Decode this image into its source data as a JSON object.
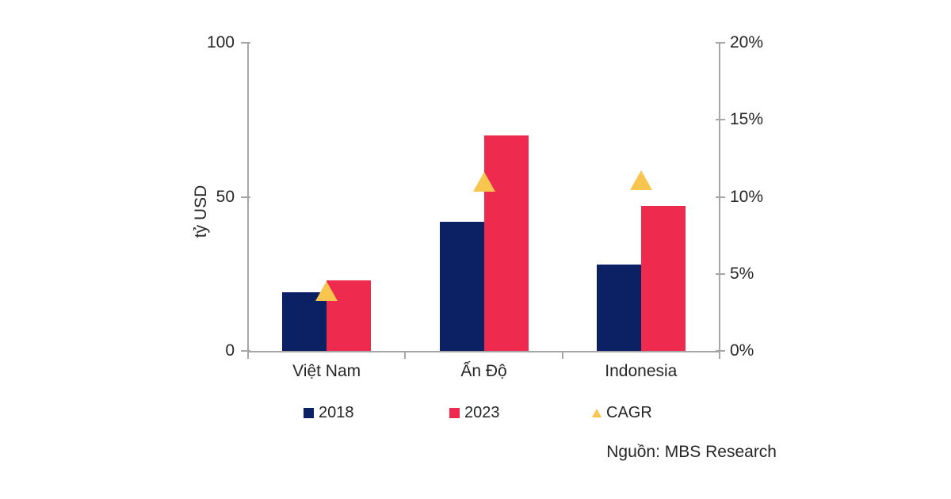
{
  "source_note": "Nguồn: MBS Research",
  "colors": {
    "bar_2018": "#0B2164",
    "bar_2023": "#EE2B4E",
    "cagr_marker": "#F8C54F",
    "axis_line": "#A6A6A6",
    "text": "#262626"
  },
  "chart_data": {
    "type": "bar",
    "title": "",
    "categories": [
      "Việt Nam",
      "Ấn Độ",
      "Indonesia"
    ],
    "series": [
      {
        "name": "2018",
        "type": "bar",
        "axis": "left",
        "color_key": "bar_2018",
        "values": [
          19,
          42,
          28
        ]
      },
      {
        "name": "2023",
        "type": "bar",
        "axis": "left",
        "color_key": "bar_2023",
        "values": [
          23,
          70,
          47
        ]
      },
      {
        "name": "CAGR",
        "type": "scatter",
        "marker": "triangle",
        "axis": "right",
        "color_key": "cagr_marker",
        "values": [
          3.9,
          11.0,
          11.1
        ],
        "unit": "%"
      }
    ],
    "left_axis": {
      "title": "tỷ USD",
      "min": 0,
      "max": 100,
      "ticks": [
        0,
        50,
        100
      ],
      "tick_labels": [
        "0",
        "50",
        "100"
      ]
    },
    "right_axis": {
      "min": 0,
      "max": 20,
      "ticks": [
        0,
        5,
        10,
        15,
        20
      ],
      "tick_labels": [
        "0%",
        "5%",
        "10%",
        "15%",
        "20%"
      ]
    },
    "legend": [
      {
        "label": "2018",
        "swatch": "square",
        "color_key": "bar_2018"
      },
      {
        "label": "2023",
        "swatch": "square",
        "color_key": "bar_2023"
      },
      {
        "label": "CAGR",
        "swatch": "triangle",
        "color_key": "cagr_marker"
      }
    ],
    "grid": false,
    "legend_position": "bottom"
  }
}
